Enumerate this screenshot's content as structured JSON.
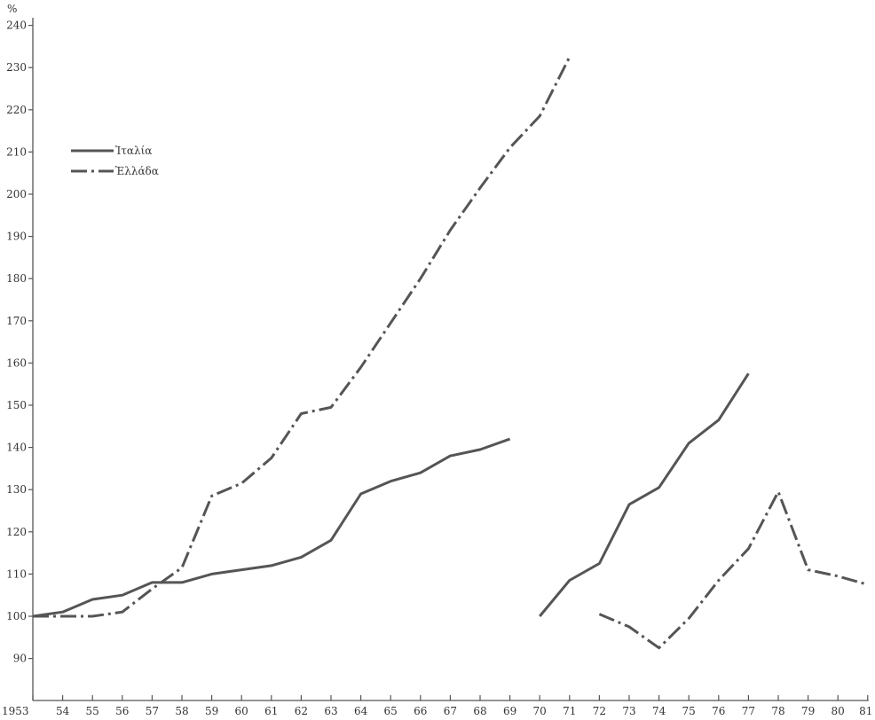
{
  "chart_data": {
    "type": "line",
    "title": "",
    "xlabel": "",
    "ylabel": "%",
    "ylim": [
      85,
      240
    ],
    "y_ticks": [
      90,
      100,
      110,
      120,
      130,
      140,
      150,
      160,
      170,
      180,
      190,
      200,
      210,
      220,
      230,
      240
    ],
    "x_categories": [
      "1953",
      "54",
      "55",
      "56",
      "57",
      "58",
      "59",
      "60",
      "61",
      "62",
      "63",
      "64",
      "65",
      "66",
      "67",
      "68",
      "69",
      "70",
      "71",
      "72",
      "73",
      "74",
      "75",
      "76",
      "77",
      "78",
      "79",
      "80",
      "81"
    ],
    "grid": false,
    "legend_position": "top-left",
    "series": [
      {
        "name": "Ἰταλία",
        "color": "#555555",
        "dash": "solid",
        "segments": [
          {
            "x": [
              "1953",
              "54",
              "55",
              "56",
              "57",
              "58",
              "59",
              "60",
              "61",
              "62",
              "63",
              "64",
              "65",
              "66",
              "67",
              "68",
              "69"
            ],
            "y": [
              100,
              101,
              104,
              105,
              108,
              108,
              110,
              111,
              112,
              114,
              118,
              129,
              132,
              134,
              138,
              139.5,
              142
            ]
          },
          {
            "x": [
              "70",
              "71",
              "72",
              "73",
              "74",
              "75",
              "76",
              "77"
            ],
            "y": [
              100,
              108.5,
              112.5,
              126.5,
              130.5,
              141,
              146.5,
              157.5
            ]
          }
        ]
      },
      {
        "name": "Ἐλλάδα",
        "color": "#555555",
        "dash": "dash-dot",
        "segments": [
          {
            "x": [
              "1953",
              "54",
              "55",
              "56",
              "57",
              "58",
              "59",
              "60",
              "61",
              "62",
              "63",
              "64",
              "65",
              "66",
              "67",
              "68",
              "69",
              "70",
              "71"
            ],
            "y": [
              100,
              100,
              100,
              101,
              106.5,
              111.5,
              128.5,
              131.5,
              137.5,
              148,
              149.5,
              159,
              169.5,
              180,
              191.5,
              201.5,
              211,
              218.5,
              232.5
            ]
          },
          {
            "x": [
              "72",
              "73",
              "74",
              "75",
              "76",
              "77",
              "78",
              "79",
              "80",
              "81"
            ],
            "y": [
              100.5,
              97.5,
              92.5,
              99.5,
              108.5,
              116,
              129.5,
              111,
              109.5,
              107.5
            ]
          }
        ]
      }
    ]
  }
}
